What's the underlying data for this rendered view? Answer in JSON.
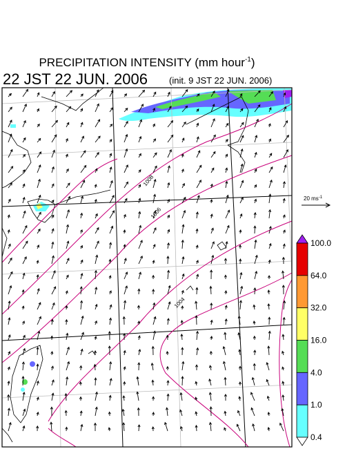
{
  "header": {
    "title": "PRECIPITATION INTENSITY (mm hour",
    "title_sup": "-1",
    "title_end": ")",
    "valid_time": "22 JST 22 JUN. 2006",
    "init_time": "(init. 9 JST 22 JUN. 2006)"
  },
  "wind_scale": {
    "label": "20 ms",
    "sup": "-1"
  },
  "colorbar": {
    "levels": [
      "100.0",
      "64.0",
      "32.0",
      "16.0",
      "4.0",
      "1.0",
      "0.4"
    ],
    "colors": [
      "#e60000",
      "#ff9933",
      "#ffff66",
      "#55dd55",
      "#6666ff",
      "#66ffff"
    ],
    "over_color": "#a020f0",
    "under_color": "#ffffff"
  },
  "contour_labels": [
    "1008",
    "1006",
    "1004"
  ]
}
